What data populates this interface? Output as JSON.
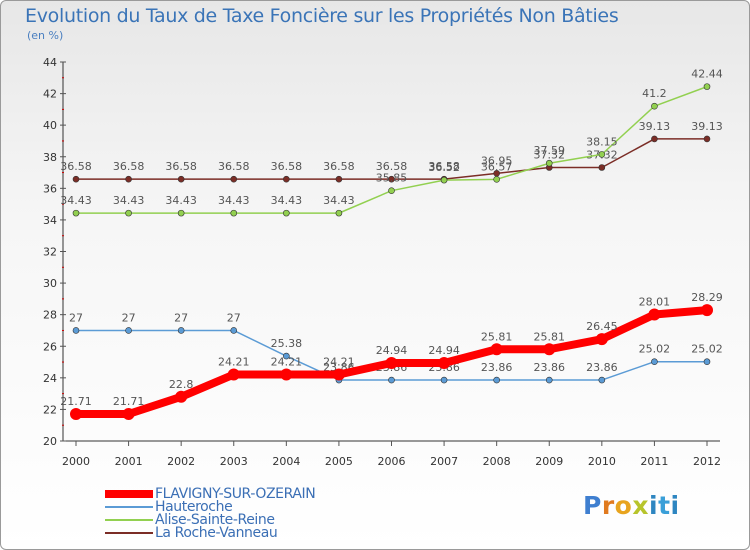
{
  "header": {
    "title": "Evolution du Taux de Taxe Foncière sur les Propriétés Non Bâties",
    "subtitle": "(en %)"
  },
  "logo": {
    "text": "Proxiti",
    "letters": [
      "P",
      "r",
      "o",
      "x",
      "i",
      "t",
      "i"
    ],
    "colors": [
      "#3f7fd0",
      "#e07a1f",
      "#e8a41e",
      "#b7c42b",
      "#2e86c1",
      "#3a9fd8",
      "#2e86c1"
    ]
  },
  "chart_data": {
    "type": "line",
    "title": "Evolution du Taux de Taxe Foncière sur les Propriétés Non Bâties",
    "ylabel": "(en %)",
    "xlabel": "",
    "categories": [
      "2000",
      "2001",
      "2002",
      "2003",
      "2004",
      "2005",
      "2006",
      "2007",
      "2008",
      "2009",
      "2010",
      "2011",
      "2012"
    ],
    "ylim": [
      20,
      44
    ],
    "yticks": [
      20,
      22,
      24,
      26,
      28,
      30,
      32,
      34,
      36,
      38,
      40,
      42,
      44
    ],
    "grid": false,
    "legend_position": "bottom-left",
    "series": [
      {
        "name": "FLAVIGNY-SUR-OZERAIN",
        "color": "#ff0000",
        "width": 8,
        "values": [
          21.71,
          21.71,
          22.8,
          24.21,
          24.21,
          24.21,
          24.94,
          24.94,
          25.81,
          25.81,
          26.45,
          28.01,
          28.29
        ],
        "labels": [
          "21.71",
          "21.71",
          "22.8",
          "24.21",
          "24.21",
          "24.21",
          "24.94",
          "24.94",
          "25.81",
          "25.81",
          "26.45",
          "28.01",
          "28.29"
        ]
      },
      {
        "name": "Hauteroche",
        "color": "#5b9bd5",
        "width": 1.5,
        "values": [
          27,
          27,
          27,
          27,
          25.38,
          23.86,
          23.86,
          23.86,
          23.86,
          23.86,
          23.86,
          25.02,
          25.02
        ],
        "labels": [
          "27",
          "27",
          "27",
          "27",
          "25.38",
          "23.86",
          "23.86",
          "23.86",
          "23.86",
          "23.86",
          "23.86",
          "25.02",
          "25.02"
        ]
      },
      {
        "name": "Alise-Sainte-Reine",
        "color": "#92d050",
        "width": 1.5,
        "values": [
          34.43,
          34.43,
          34.43,
          34.43,
          34.43,
          34.43,
          35.85,
          36.52,
          36.57,
          37.59,
          38.15,
          41.2,
          42.44
        ],
        "labels": [
          "34.43",
          "34.43",
          "34.43",
          "34.43",
          "34.43",
          "34.43",
          "35.85",
          "36.52",
          "36.57",
          "37.59",
          "38.15",
          "41.2",
          "42.44"
        ]
      },
      {
        "name": "La Roche-Vanneau",
        "color": "#7b2d26",
        "width": 1.5,
        "values": [
          36.58,
          36.58,
          36.58,
          36.58,
          36.58,
          36.58,
          36.58,
          36.58,
          36.95,
          37.32,
          37.32,
          39.13,
          39.13
        ],
        "labels": [
          "36.58",
          "36.58",
          "36.58",
          "36.58",
          "36.58",
          "36.58",
          "36.58",
          "36.58",
          "36.95",
          "37.32",
          "37.32",
          "39.13",
          "39.13"
        ]
      }
    ]
  }
}
